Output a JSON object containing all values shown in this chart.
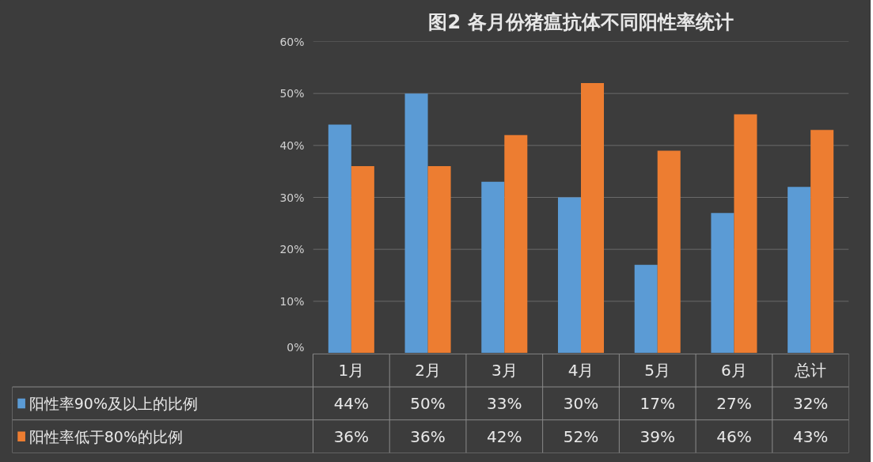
{
  "chart_data": {
    "type": "bar",
    "title": "图2 各月份猪瘟抗体不同阳性率统计",
    "categories": [
      "1月",
      "2月",
      "3月",
      "4月",
      "5月",
      "6月",
      "总计"
    ],
    "series": [
      {
        "name": "阳性率90%及以上的比例",
        "color": "#5b9bd5",
        "values": [
          44,
          50,
          33,
          30,
          17,
          27,
          32
        ],
        "value_labels": [
          "44%",
          "50%",
          "33%",
          "30%",
          "17%",
          "27%",
          "32%"
        ]
      },
      {
        "name": "阳性率低于80%的比例",
        "color": "#ed7d31",
        "values": [
          36,
          36,
          42,
          52,
          39,
          46,
          43
        ],
        "value_labels": [
          "36%",
          "36%",
          "42%",
          "52%",
          "39%",
          "46%",
          "43%"
        ]
      }
    ],
    "ylim": [
      0,
      60
    ],
    "yticks": [
      {
        "value": 0,
        "label": "0%"
      },
      {
        "value": 10,
        "label": "10%"
      },
      {
        "value": 20,
        "label": "20%"
      },
      {
        "value": 30,
        "label": "30%"
      },
      {
        "value": 40,
        "label": "40%"
      },
      {
        "value": 50,
        "label": "50%"
      },
      {
        "value": 60,
        "label": "60%"
      }
    ],
    "grid": "y",
    "legend": "bottom"
  }
}
